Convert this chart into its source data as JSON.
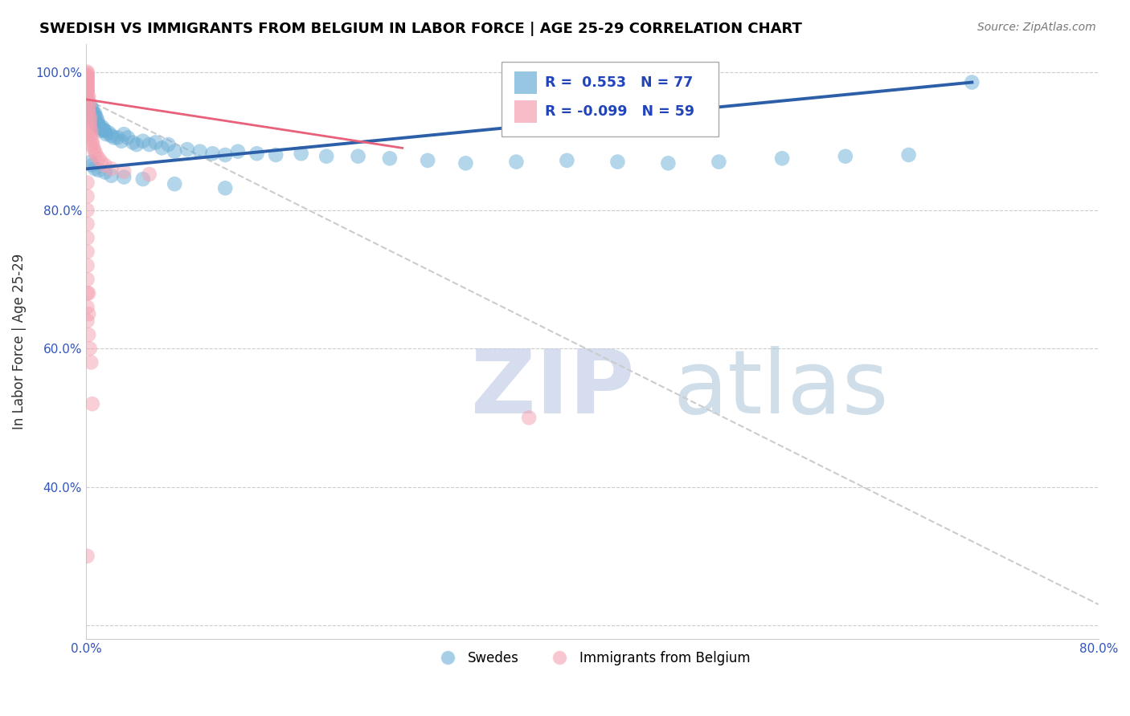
{
  "title": "SWEDISH VS IMMIGRANTS FROM BELGIUM IN LABOR FORCE | AGE 25-29 CORRELATION CHART",
  "source": "Source: ZipAtlas.com",
  "ylabel": "In Labor Force | Age 25-29",
  "xlim": [
    0.0,
    0.8
  ],
  "ylim": [
    0.18,
    1.04
  ],
  "xtick_vals": [
    0.0,
    0.1,
    0.2,
    0.3,
    0.4,
    0.5,
    0.6,
    0.7,
    0.8
  ],
  "xticklabels": [
    "0.0%",
    "",
    "",
    "",
    "",
    "",
    "",
    "",
    "80.0%"
  ],
  "ytick_vals": [
    0.2,
    0.4,
    0.6,
    0.8,
    1.0
  ],
  "yticklabels": [
    "",
    "40.0%",
    "60.0%",
    "80.0%",
    "100.0%"
  ],
  "legend_R_blue": "0.553",
  "legend_N_blue": "77",
  "legend_R_pink": "-0.099",
  "legend_N_pink": "59",
  "legend_label_blue": "Swedes",
  "legend_label_pink": "Immigrants from Belgium",
  "blue_color": "#6baed6",
  "pink_color": "#f4a0b0",
  "blue_line_color": "#2c5fa8",
  "pink_line_color": "#e8607a",
  "dash_line_color": "#cccccc",
  "title_fontsize": 13,
  "source_fontsize": 10,
  "blue_x": [
    0.001,
    0.002,
    0.002,
    0.003,
    0.003,
    0.004,
    0.004,
    0.004,
    0.005,
    0.005,
    0.005,
    0.006,
    0.006,
    0.006,
    0.007,
    0.007,
    0.007,
    0.008,
    0.008,
    0.009,
    0.009,
    0.01,
    0.01,
    0.011,
    0.012,
    0.012,
    0.013,
    0.014,
    0.015,
    0.016,
    0.018,
    0.02,
    0.022,
    0.025,
    0.028,
    0.03,
    0.033,
    0.037,
    0.04,
    0.045,
    0.05,
    0.055,
    0.06,
    0.065,
    0.07,
    0.08,
    0.09,
    0.1,
    0.11,
    0.12,
    0.135,
    0.15,
    0.17,
    0.19,
    0.215,
    0.24,
    0.27,
    0.3,
    0.34,
    0.38,
    0.42,
    0.46,
    0.5,
    0.55,
    0.6,
    0.65,
    0.7,
    0.004,
    0.005,
    0.007,
    0.01,
    0.015,
    0.02,
    0.03,
    0.045,
    0.07,
    0.11
  ],
  "blue_y": [
    0.96,
    0.95,
    0.94,
    0.935,
    0.945,
    0.95,
    0.94,
    0.93,
    0.945,
    0.94,
    0.935,
    0.94,
    0.935,
    0.93,
    0.94,
    0.935,
    0.93,
    0.935,
    0.925,
    0.93,
    0.925,
    0.925,
    0.92,
    0.92,
    0.918,
    0.915,
    0.92,
    0.916,
    0.915,
    0.91,
    0.912,
    0.908,
    0.905,
    0.905,
    0.9,
    0.91,
    0.905,
    0.898,
    0.895,
    0.9,
    0.895,
    0.898,
    0.89,
    0.895,
    0.885,
    0.888,
    0.885,
    0.882,
    0.88,
    0.885,
    0.882,
    0.88,
    0.882,
    0.878,
    0.878,
    0.875,
    0.872,
    0.868,
    0.87,
    0.872,
    0.87,
    0.868,
    0.87,
    0.875,
    0.878,
    0.88,
    0.985,
    0.87,
    0.865,
    0.86,
    0.858,
    0.855,
    0.85,
    0.848,
    0.845,
    0.838,
    0.832
  ],
  "pink_x": [
    0.001,
    0.001,
    0.001,
    0.001,
    0.001,
    0.001,
    0.001,
    0.001,
    0.001,
    0.001,
    0.001,
    0.001,
    0.001,
    0.001,
    0.001,
    0.001,
    0.002,
    0.002,
    0.002,
    0.002,
    0.002,
    0.002,
    0.003,
    0.003,
    0.003,
    0.003,
    0.004,
    0.004,
    0.004,
    0.005,
    0.005,
    0.006,
    0.007,
    0.008,
    0.01,
    0.012,
    0.015,
    0.02,
    0.03,
    0.05,
    0.001,
    0.001,
    0.001,
    0.001,
    0.001,
    0.001,
    0.001,
    0.001,
    0.001,
    0.001,
    0.001,
    0.002,
    0.002,
    0.002,
    0.003,
    0.004,
    0.005,
    0.35,
    0.001
  ],
  "pink_y": [
    1.0,
    0.998,
    0.996,
    0.994,
    0.992,
    0.99,
    0.988,
    0.986,
    0.984,
    0.982,
    0.98,
    0.978,
    0.976,
    0.974,
    0.972,
    0.97,
    0.965,
    0.96,
    0.955,
    0.95,
    0.945,
    0.94,
    0.935,
    0.93,
    0.925,
    0.92,
    0.915,
    0.91,
    0.905,
    0.9,
    0.895,
    0.89,
    0.885,
    0.88,
    0.875,
    0.87,
    0.865,
    0.86,
    0.856,
    0.852,
    0.84,
    0.82,
    0.8,
    0.78,
    0.76,
    0.74,
    0.72,
    0.7,
    0.68,
    0.66,
    0.64,
    0.68,
    0.65,
    0.62,
    0.6,
    0.58,
    0.52,
    0.5,
    0.3
  ],
  "blue_trend_x": [
    0.001,
    0.7
  ],
  "blue_trend_y": [
    0.86,
    0.985
  ],
  "pink_trend_x": [
    0.001,
    0.25
  ],
  "pink_trend_y": [
    0.96,
    0.89
  ],
  "dash_trend_x": [
    0.001,
    0.8
  ],
  "dash_trend_y": [
    0.96,
    0.23
  ]
}
